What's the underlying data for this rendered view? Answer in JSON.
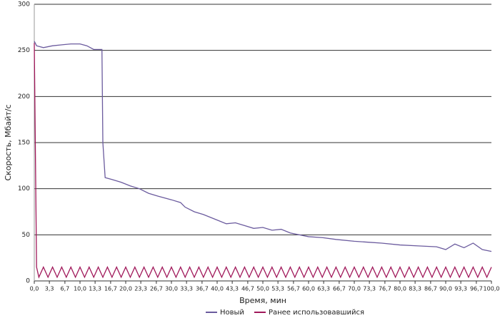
{
  "chart_data": {
    "type": "line",
    "xlabel": "Время, мин",
    "ylabel": "Скорость, Мбайт/с",
    "xlim": [
      0,
      100
    ],
    "ylim": [
      0,
      300
    ],
    "xticks": [
      {
        "value": 0,
        "label": "0,0"
      },
      {
        "value": 3.3,
        "label": "3,3"
      },
      {
        "value": 6.7,
        "label": "6,7"
      },
      {
        "value": 10,
        "label": "10,0"
      },
      {
        "value": 13.3,
        "label": "13,3"
      },
      {
        "value": 16.7,
        "label": "16,7"
      },
      {
        "value": 20,
        "label": "20,0"
      },
      {
        "value": 23.3,
        "label": "23,3"
      },
      {
        "value": 26.7,
        "label": "26,7"
      },
      {
        "value": 30,
        "label": "30,0"
      },
      {
        "value": 33.3,
        "label": "33,3"
      },
      {
        "value": 36.7,
        "label": "36,7"
      },
      {
        "value": 40,
        "label": "40,0"
      },
      {
        "value": 43.3,
        "label": "43,3"
      },
      {
        "value": 46.7,
        "label": "46,7"
      },
      {
        "value": 50,
        "label": "50,0"
      },
      {
        "value": 53.3,
        "label": "53,3"
      },
      {
        "value": 56.7,
        "label": "56,7"
      },
      {
        "value": 60,
        "label": "60,0"
      },
      {
        "value": 63.3,
        "label": "63,3"
      },
      {
        "value": 66.7,
        "label": "66,7"
      },
      {
        "value": 70,
        "label": "70,0"
      },
      {
        "value": 73.3,
        "label": "73,3"
      },
      {
        "value": 76.7,
        "label": "76,7"
      },
      {
        "value": 80,
        "label": "80,0"
      },
      {
        "value": 83.3,
        "label": "83,3"
      },
      {
        "value": 86.7,
        "label": "86,7"
      },
      {
        "value": 90,
        "label": "90,0"
      },
      {
        "value": 93.3,
        "label": "93,3"
      },
      {
        "value": 96.7,
        "label": "96,7"
      },
      {
        "value": 100,
        "label": "100,0"
      }
    ],
    "yticks": [
      0,
      50,
      100,
      150,
      200,
      250,
      300
    ],
    "grid": true,
    "legend": "bottom",
    "series": [
      {
        "name": "Новый",
        "color": "#6b5b9e",
        "x": [
          0,
          0.5,
          2,
          4,
          6,
          8,
          10,
          11.5,
          13,
          14.8,
          15,
          15.5,
          17,
          19,
          21,
          23,
          25,
          27,
          30,
          32,
          33,
          35,
          37,
          40,
          42,
          44,
          46,
          48,
          50,
          52,
          54,
          56,
          58,
          60,
          63,
          66,
          70,
          73,
          76,
          80,
          84,
          88,
          90,
          92,
          94,
          96,
          98,
          100
        ],
        "values": [
          260,
          255,
          253,
          255,
          256,
          257,
          257,
          255,
          251,
          251,
          150,
          112,
          110,
          107,
          103,
          100,
          95,
          92,
          88,
          85,
          80,
          75,
          72,
          66,
          62,
          63,
          60,
          57,
          58,
          55,
          56,
          52,
          50,
          48,
          47,
          45,
          43,
          42,
          41,
          39,
          38,
          37,
          34,
          40,
          36,
          41,
          34,
          32
        ]
      },
      {
        "name": "Ранее использовавшийся",
        "color": "#a0185a",
        "x": [
          0,
          0.5,
          1,
          2,
          3,
          4,
          5,
          6,
          7,
          8,
          9,
          10,
          11,
          12,
          13,
          14,
          15,
          16,
          17,
          18,
          19,
          20,
          21,
          22,
          23,
          24,
          25,
          26,
          27,
          28,
          29,
          30,
          31,
          32,
          33,
          34,
          35,
          36,
          37,
          38,
          39,
          40,
          41,
          42,
          43,
          44,
          45,
          46,
          47,
          48,
          49,
          50,
          51,
          52,
          53,
          54,
          55,
          56,
          57,
          58,
          59,
          60,
          61,
          62,
          63,
          64,
          65,
          66,
          67,
          68,
          69,
          70,
          71,
          72,
          73,
          74,
          75,
          76,
          77,
          78,
          79,
          80,
          81,
          82,
          83,
          84,
          85,
          86,
          87,
          88,
          89,
          90,
          91,
          92,
          93,
          94,
          95,
          96,
          97,
          98,
          99,
          100
        ],
        "values": [
          258,
          15,
          4,
          15,
          4,
          15,
          4,
          15,
          4,
          15,
          4,
          15,
          4,
          15,
          4,
          15,
          4,
          15,
          4,
          15,
          4,
          15,
          4,
          15,
          4,
          15,
          4,
          15,
          4,
          15,
          4,
          15,
          4,
          15,
          4,
          15,
          4,
          15,
          4,
          15,
          4,
          15,
          4,
          15,
          4,
          15,
          4,
          15,
          4,
          15,
          4,
          15,
          4,
          15,
          4,
          15,
          4,
          15,
          4,
          15,
          4,
          15,
          4,
          15,
          4,
          15,
          4,
          15,
          4,
          15,
          4,
          15,
          4,
          15,
          4,
          15,
          4,
          15,
          4,
          15,
          4,
          15,
          4,
          15,
          4,
          15,
          4,
          15,
          4,
          15,
          4,
          15,
          4,
          15,
          4,
          15,
          4,
          15,
          4,
          15,
          4,
          15
        ]
      }
    ]
  }
}
